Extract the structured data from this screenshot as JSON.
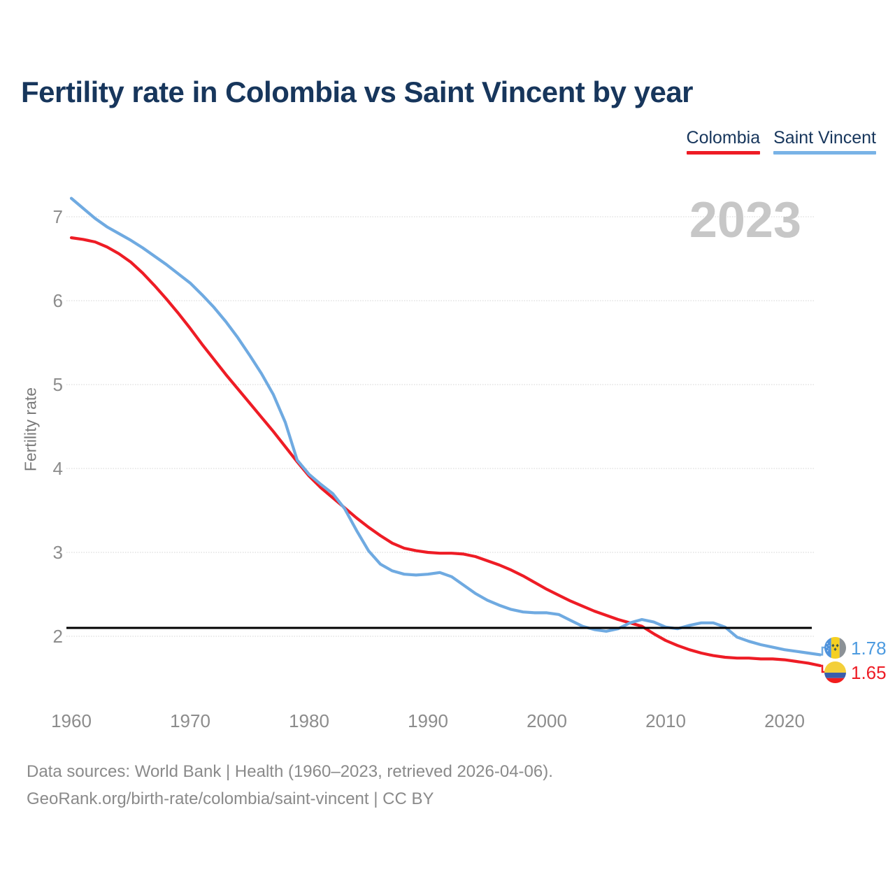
{
  "title": "Fertility rate in Colombia vs Saint Vincent by year",
  "legend": {
    "items": [
      {
        "label": "Colombia",
        "color": "#ee1c25"
      },
      {
        "label": "Saint Vincent",
        "color": "#79b3e6"
      }
    ]
  },
  "watermark_year": "2023",
  "chart_data": {
    "type": "line",
    "title": "Fertility rate in Colombia vs Saint Vincent by year",
    "xlabel": "",
    "ylabel": "Fertility rate",
    "x_ticks": [
      1960,
      1970,
      1980,
      1990,
      2000,
      2010,
      2020
    ],
    "y_ticks": [
      2,
      3,
      4,
      5,
      6,
      7
    ],
    "ylim": [
      1.5,
      7.45
    ],
    "xlim": [
      1959.5,
      2026
    ],
    "grid": true,
    "legend_position": "top-right",
    "reference_line": {
      "value": 2.1,
      "color": "#000000"
    },
    "x": [
      1960,
      1961,
      1962,
      1963,
      1964,
      1965,
      1966,
      1967,
      1968,
      1969,
      1970,
      1971,
      1972,
      1973,
      1974,
      1975,
      1976,
      1977,
      1978,
      1979,
      1980,
      1981,
      1982,
      1983,
      1984,
      1985,
      1986,
      1987,
      1988,
      1989,
      1990,
      1991,
      1992,
      1993,
      1994,
      1995,
      1996,
      1997,
      1998,
      1999,
      2000,
      2001,
      2002,
      2003,
      2004,
      2005,
      2006,
      2007,
      2008,
      2009,
      2010,
      2011,
      2012,
      2013,
      2014,
      2015,
      2016,
      2017,
      2018,
      2019,
      2020,
      2021,
      2022,
      2023
    ],
    "series": [
      {
        "name": "Colombia",
        "color": "#ee1c25",
        "values": [
          6.75,
          6.73,
          6.7,
          6.64,
          6.56,
          6.46,
          6.33,
          6.18,
          6.02,
          5.85,
          5.67,
          5.48,
          5.3,
          5.12,
          4.95,
          4.78,
          4.61,
          4.44,
          4.26,
          4.08,
          3.91,
          3.77,
          3.65,
          3.53,
          3.41,
          3.3,
          3.2,
          3.11,
          3.05,
          3.02,
          3.0,
          2.99,
          2.99,
          2.98,
          2.95,
          2.9,
          2.85,
          2.79,
          2.72,
          2.64,
          2.56,
          2.49,
          2.42,
          2.36,
          2.3,
          2.25,
          2.2,
          2.16,
          2.12,
          2.03,
          1.95,
          1.89,
          1.84,
          1.8,
          1.77,
          1.75,
          1.74,
          1.74,
          1.73,
          1.73,
          1.72,
          1.7,
          1.68,
          1.65
        ]
      },
      {
        "name": "Saint Vincent",
        "color": "#6faae1",
        "values": [
          7.22,
          7.1,
          6.98,
          6.88,
          6.8,
          6.72,
          6.63,
          6.53,
          6.43,
          6.32,
          6.21,
          6.07,
          5.92,
          5.75,
          5.56,
          5.35,
          5.13,
          4.88,
          4.55,
          4.1,
          3.93,
          3.81,
          3.7,
          3.52,
          3.26,
          3.02,
          2.86,
          2.78,
          2.74,
          2.73,
          2.74,
          2.76,
          2.71,
          2.61,
          2.51,
          2.43,
          2.37,
          2.32,
          2.29,
          2.28,
          2.28,
          2.26,
          2.19,
          2.12,
          2.08,
          2.06,
          2.09,
          2.16,
          2.2,
          2.17,
          2.11,
          2.09,
          2.13,
          2.16,
          2.16,
          2.11,
          1.99,
          1.94,
          1.9,
          1.87,
          1.84,
          1.82,
          1.8,
          1.78
        ]
      }
    ],
    "end_labels": [
      {
        "series": "Saint Vincent",
        "value": "1.78",
        "text_color": "#4d9be0",
        "flag": "saint-vincent"
      },
      {
        "series": "Colombia",
        "value": "1.65",
        "text_color": "#ee1c25",
        "flag": "colombia"
      }
    ]
  },
  "footer": {
    "line1": "Data sources: World Bank | Health (1960–2023, retrieved 2026-04-06).",
    "line2": "GeoRank.org/birth-rate/colombia/saint-vincent | CC BY"
  }
}
